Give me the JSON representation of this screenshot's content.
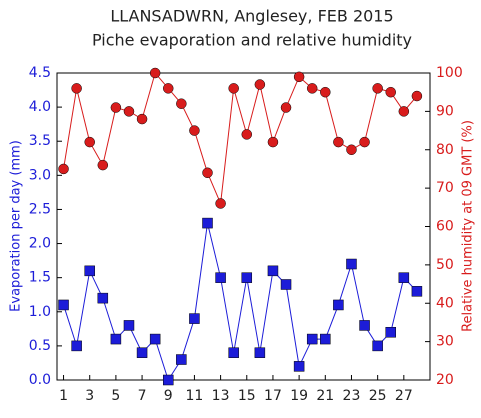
{
  "chart_data": {
    "type": "line",
    "title": "LLANSADWRN, Anglesey, FEB 2015",
    "subtitle": "Piche evaporation and relative humidity",
    "ylabel": "Evaporation per day (mm)",
    "y2label": "Relative humidity at 09 GMT (%)",
    "x": [
      1,
      2,
      3,
      4,
      5,
      6,
      7,
      8,
      9,
      10,
      11,
      12,
      13,
      14,
      15,
      16,
      17,
      18,
      19,
      20,
      21,
      22,
      23,
      24,
      25,
      26,
      27,
      28
    ],
    "xlim": [
      0.5,
      29
    ],
    "xticks": [
      1,
      3,
      5,
      7,
      9,
      11,
      13,
      15,
      17,
      19,
      21,
      23,
      25,
      27
    ],
    "ylim": [
      0,
      4.5
    ],
    "yticks": [
      {
        "value": 0,
        "label": "0.0"
      },
      0.5,
      {
        "value": 1,
        "label": "1.0"
      },
      1.5,
      {
        "value": 2,
        "label": "2.0"
      },
      2.5,
      {
        "value": 3,
        "label": "3.0"
      },
      3.5,
      {
        "value": 4,
        "label": "4.0"
      },
      4.5
    ],
    "y2lim": [
      20,
      100
    ],
    "y2ticks": [
      20,
      30,
      40,
      50,
      60,
      70,
      80,
      90,
      100
    ],
    "series": [
      {
        "name": "Evaporation",
        "color": "#1c1cd8",
        "marker": "square",
        "axis": "y",
        "values": [
          1.1,
          0.5,
          1.6,
          1.2,
          0.6,
          0.8,
          0.4,
          0.6,
          0.0,
          0.3,
          0.9,
          2.3,
          1.5,
          0.4,
          1.5,
          0.4,
          1.6,
          1.4,
          0.2,
          0.6,
          0.6,
          1.1,
          1.7,
          0.8,
          0.5,
          0.7,
          1.5,
          1.3
        ]
      },
      {
        "name": "Relative humidity",
        "color": "#d81c1c",
        "marker": "circle",
        "axis": "y2",
        "values": [
          75,
          96,
          82,
          76,
          91,
          90,
          88,
          100,
          96,
          92,
          85,
          74,
          66,
          96,
          84,
          97,
          82,
          91,
          99,
          96,
          95,
          82,
          80,
          82,
          96,
          95,
          90,
          94
        ]
      }
    ]
  }
}
